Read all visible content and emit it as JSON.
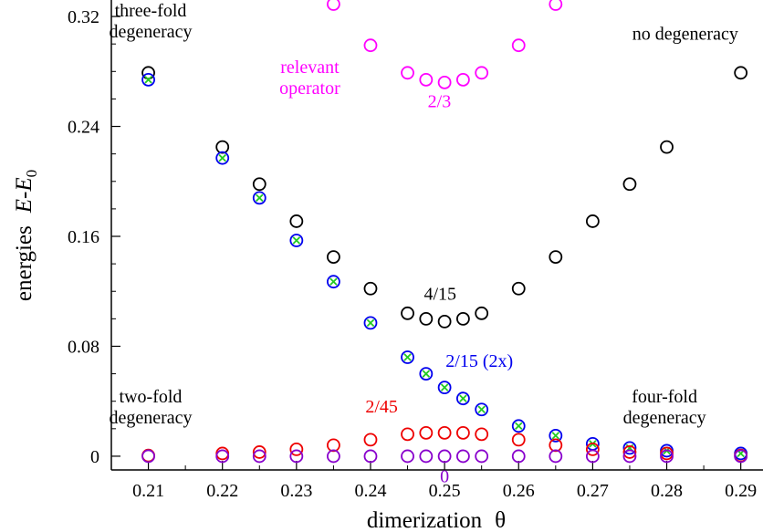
{
  "chart_data": {
    "type": "scatter",
    "xlabel": "dimerization",
    "xlabel_symbol": "θ",
    "ylabel_prefix": "energies",
    "ylabel_E": "E",
    "ylabel_dash": "-",
    "ylabel_E0": "E",
    "ylabel_sub": "0",
    "xlim": [
      0.205,
      0.293
    ],
    "ylim": [
      -0.01,
      0.332
    ],
    "xticks": [
      0.21,
      0.22,
      0.23,
      0.24,
      0.25,
      0.26,
      0.27,
      0.28,
      0.29
    ],
    "xtick_labels": [
      "0.21",
      "0.22",
      "0.23",
      "0.24",
      "0.25",
      "0.26",
      "0.27",
      "0.28",
      "0.29"
    ],
    "yticks": [
      0,
      0.08,
      0.16,
      0.24,
      0.32
    ],
    "ytick_labels": [
      "0",
      "0.08",
      "0.16",
      "0.24",
      "0.32"
    ],
    "series": [
      {
        "color": "#000000",
        "marker": "circle",
        "x": [
          0.21,
          0.22,
          0.225,
          0.23,
          0.235,
          0.24,
          0.245,
          0.2475,
          0.25,
          0.2525,
          0.255,
          0.26,
          0.265,
          0.27,
          0.275,
          0.28,
          0.29
        ],
        "y": [
          0.279,
          0.225,
          0.198,
          0.171,
          0.145,
          0.122,
          0.104,
          0.1,
          0.098,
          0.1,
          0.104,
          0.122,
          0.145,
          0.171,
          0.198,
          0.225,
          0.279
        ]
      },
      {
        "color": "#0000ee",
        "marker": "circle-cross",
        "cross_color": "#22cc22",
        "x": [
          0.21,
          0.22,
          0.225,
          0.23,
          0.235,
          0.24,
          0.245,
          0.2475,
          0.25,
          0.2525,
          0.255,
          0.26,
          0.265,
          0.27,
          0.275,
          0.28,
          0.29
        ],
        "y": [
          0.274,
          0.217,
          0.188,
          0.157,
          0.127,
          0.097,
          0.072,
          0.06,
          0.05,
          0.042,
          0.034,
          0.022,
          0.015,
          0.009,
          0.006,
          0.004,
          0.002
        ]
      },
      {
        "color": "#ff00ff",
        "marker": "circle",
        "x": [
          0.235,
          0.24,
          0.245,
          0.2475,
          0.25,
          0.2525,
          0.255,
          0.26,
          0.265
        ],
        "y": [
          0.329,
          0.299,
          0.279,
          0.274,
          0.272,
          0.274,
          0.279,
          0.299,
          0.329
        ]
      },
      {
        "color": "#ee0000",
        "marker": "circle",
        "x": [
          0.21,
          0.22,
          0.225,
          0.23,
          0.235,
          0.24,
          0.245,
          0.2475,
          0.25,
          0.2525,
          0.255,
          0.26,
          0.265,
          0.27,
          0.275,
          0.28,
          0.29
        ],
        "y": [
          0.0005,
          0.002,
          0.003,
          0.005,
          0.008,
          0.012,
          0.016,
          0.017,
          0.017,
          0.017,
          0.016,
          0.012,
          0.008,
          0.005,
          0.003,
          0.002,
          0.0005
        ]
      },
      {
        "color": "#8800cc",
        "marker": "circle",
        "x": [
          0.21,
          0.22,
          0.225,
          0.23,
          0.235,
          0.24,
          0.245,
          0.2475,
          0.25,
          0.2525,
          0.255,
          0.26,
          0.265,
          0.27,
          0.275,
          0.28,
          0.29
        ],
        "y": [
          0,
          0,
          0,
          0,
          0,
          0,
          0,
          0,
          0,
          0,
          0,
          0,
          0,
          0,
          0,
          0,
          0
        ]
      }
    ],
    "annotations": [
      {
        "id": "three-fold-degeneracy",
        "lines": [
          "three-fold",
          "degeneracy"
        ],
        "color": "#000000",
        "x": 0.2103,
        "y": 0.32,
        "anchor": "middle"
      },
      {
        "id": "no-degeneracy",
        "lines": [
          "no degeneracy"
        ],
        "color": "#000000",
        "x": 0.2825,
        "y": 0.303,
        "anchor": "middle"
      },
      {
        "id": "relevant-operator",
        "lines": [
          "relevant",
          "operator"
        ],
        "color": "#ff00ff",
        "x": 0.2318,
        "y": 0.279,
        "anchor": "middle"
      },
      {
        "id": "label-2-3",
        "lines": [
          "2/3"
        ],
        "color": "#ff00ff",
        "x": 0.2493,
        "y": 0.254,
        "anchor": "middle"
      },
      {
        "id": "label-4-15",
        "lines": [
          "4/15"
        ],
        "color": "#000000",
        "x": 0.2494,
        "y": 0.114,
        "anchor": "middle"
      },
      {
        "id": "label-2-15",
        "lines": [
          "2/15 (2x)"
        ],
        "color": "#0000ee",
        "x": 0.2547,
        "y": 0.065,
        "anchor": "middle"
      },
      {
        "id": "two-fold-degeneracy",
        "lines": [
          "two-fold",
          "degeneracy"
        ],
        "color": "#000000",
        "x": 0.2103,
        "y": 0.039,
        "anchor": "middle"
      },
      {
        "id": "label-2-45",
        "lines": [
          "2/45"
        ],
        "color": "#ee0000",
        "x": 0.2415,
        "y": 0.032,
        "anchor": "middle"
      },
      {
        "id": "four-fold-degeneracy",
        "lines": [
          "four-fold",
          "degeneracy"
        ],
        "color": "#000000",
        "x": 0.2797,
        "y": 0.039,
        "anchor": "middle"
      },
      {
        "id": "label-0",
        "lines": [
          "0"
        ],
        "color": "#8800cc",
        "x": 0.25,
        "y": -0.019,
        "anchor": "middle"
      }
    ]
  }
}
